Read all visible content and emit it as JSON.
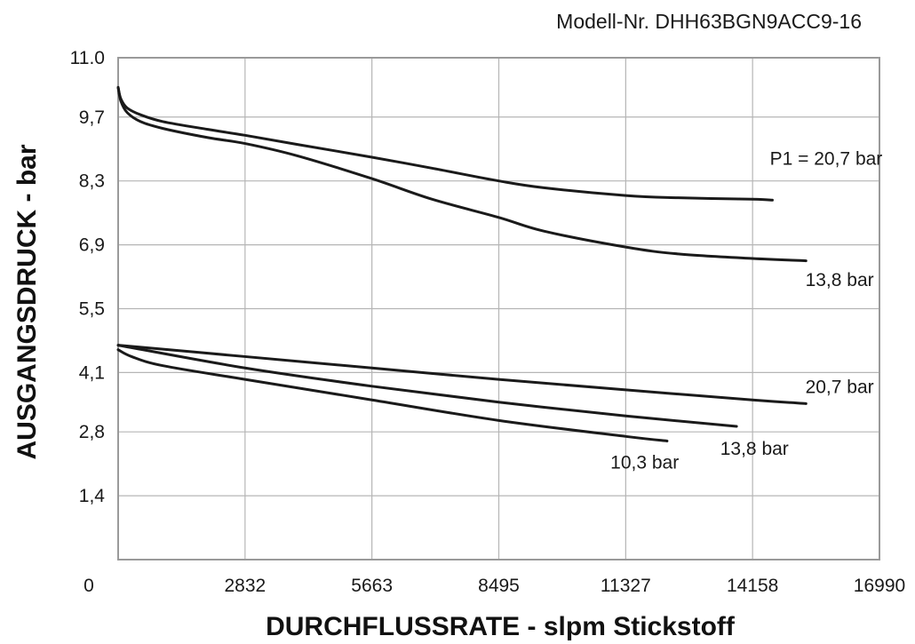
{
  "chart_data": {
    "type": "line",
    "title": "",
    "subtitle": "Modell-Nr. DHH63BGN9ACC9-16",
    "xlabel": "DURCHFLUSSRATE - slpm Stickstoff",
    "ylabel": "AUSGANGSDRUCK - bar",
    "xlim": [
      0,
      16990
    ],
    "ylim": [
      0,
      11.0
    ],
    "origin_label": "0",
    "x_ticks": [
      2832,
      5663,
      8495,
      11327,
      14158,
      16990
    ],
    "x_tick_labels": [
      "2832",
      "5663",
      "8495",
      "11327",
      "14158",
      "16990"
    ],
    "y_ticks": [
      1.4,
      2.8,
      4.1,
      5.5,
      6.9,
      8.3,
      9.7,
      11.0
    ],
    "y_tick_labels": [
      "1,4",
      "2,8",
      "4,1",
      "5,5",
      "6,9",
      "8,3",
      "9,7",
      "11.0"
    ],
    "grid": true,
    "legend": "none",
    "series": [
      {
        "name": "P1 = 20,7 bar",
        "label_x": 15800,
        "label_y": 8.65,
        "points": [
          [
            0,
            10.35
          ],
          [
            60,
            10.1
          ],
          [
            200,
            9.9
          ],
          [
            500,
            9.75
          ],
          [
            1000,
            9.6
          ],
          [
            2000,
            9.43
          ],
          [
            2832,
            9.3
          ],
          [
            4000,
            9.1
          ],
          [
            5663,
            8.82
          ],
          [
            7000,
            8.58
          ],
          [
            8495,
            8.3
          ],
          [
            9500,
            8.15
          ],
          [
            11327,
            7.98
          ],
          [
            12500,
            7.93
          ],
          [
            14158,
            7.9
          ],
          [
            14600,
            7.88
          ]
        ]
      },
      {
        "name": "13,8 bar",
        "label_x": 16100,
        "label_y": 6.0,
        "points": [
          [
            0,
            10.35
          ],
          [
            60,
            10.05
          ],
          [
            200,
            9.8
          ],
          [
            500,
            9.6
          ],
          [
            1000,
            9.45
          ],
          [
            2000,
            9.25
          ],
          [
            2832,
            9.12
          ],
          [
            4000,
            8.85
          ],
          [
            5663,
            8.35
          ],
          [
            7000,
            7.9
          ],
          [
            8495,
            7.5
          ],
          [
            9500,
            7.2
          ],
          [
            11327,
            6.85
          ],
          [
            12500,
            6.7
          ],
          [
            14158,
            6.6
          ],
          [
            15350,
            6.55
          ]
        ]
      },
      {
        "name": "20,7 bar",
        "label_x": 16100,
        "label_y": 3.65,
        "points": [
          [
            0,
            4.7
          ],
          [
            2832,
            4.45
          ],
          [
            5663,
            4.2
          ],
          [
            8495,
            3.95
          ],
          [
            11327,
            3.72
          ],
          [
            14158,
            3.5
          ],
          [
            15350,
            3.42
          ]
        ]
      },
      {
        "name": "13,8 bar",
        "label_x": 14200,
        "label_y": 2.3,
        "points": [
          [
            0,
            4.7
          ],
          [
            2832,
            4.2
          ],
          [
            5663,
            3.8
          ],
          [
            8495,
            3.45
          ],
          [
            11327,
            3.15
          ],
          [
            13800,
            2.92
          ]
        ]
      },
      {
        "name": "10,3 bar",
        "label_x": 11750,
        "label_y": 2.0,
        "points": [
          [
            0,
            4.6
          ],
          [
            300,
            4.45
          ],
          [
            1000,
            4.25
          ],
          [
            2832,
            3.95
          ],
          [
            5663,
            3.5
          ],
          [
            8495,
            3.05
          ],
          [
            11327,
            2.7
          ],
          [
            12250,
            2.6
          ]
        ]
      }
    ]
  }
}
